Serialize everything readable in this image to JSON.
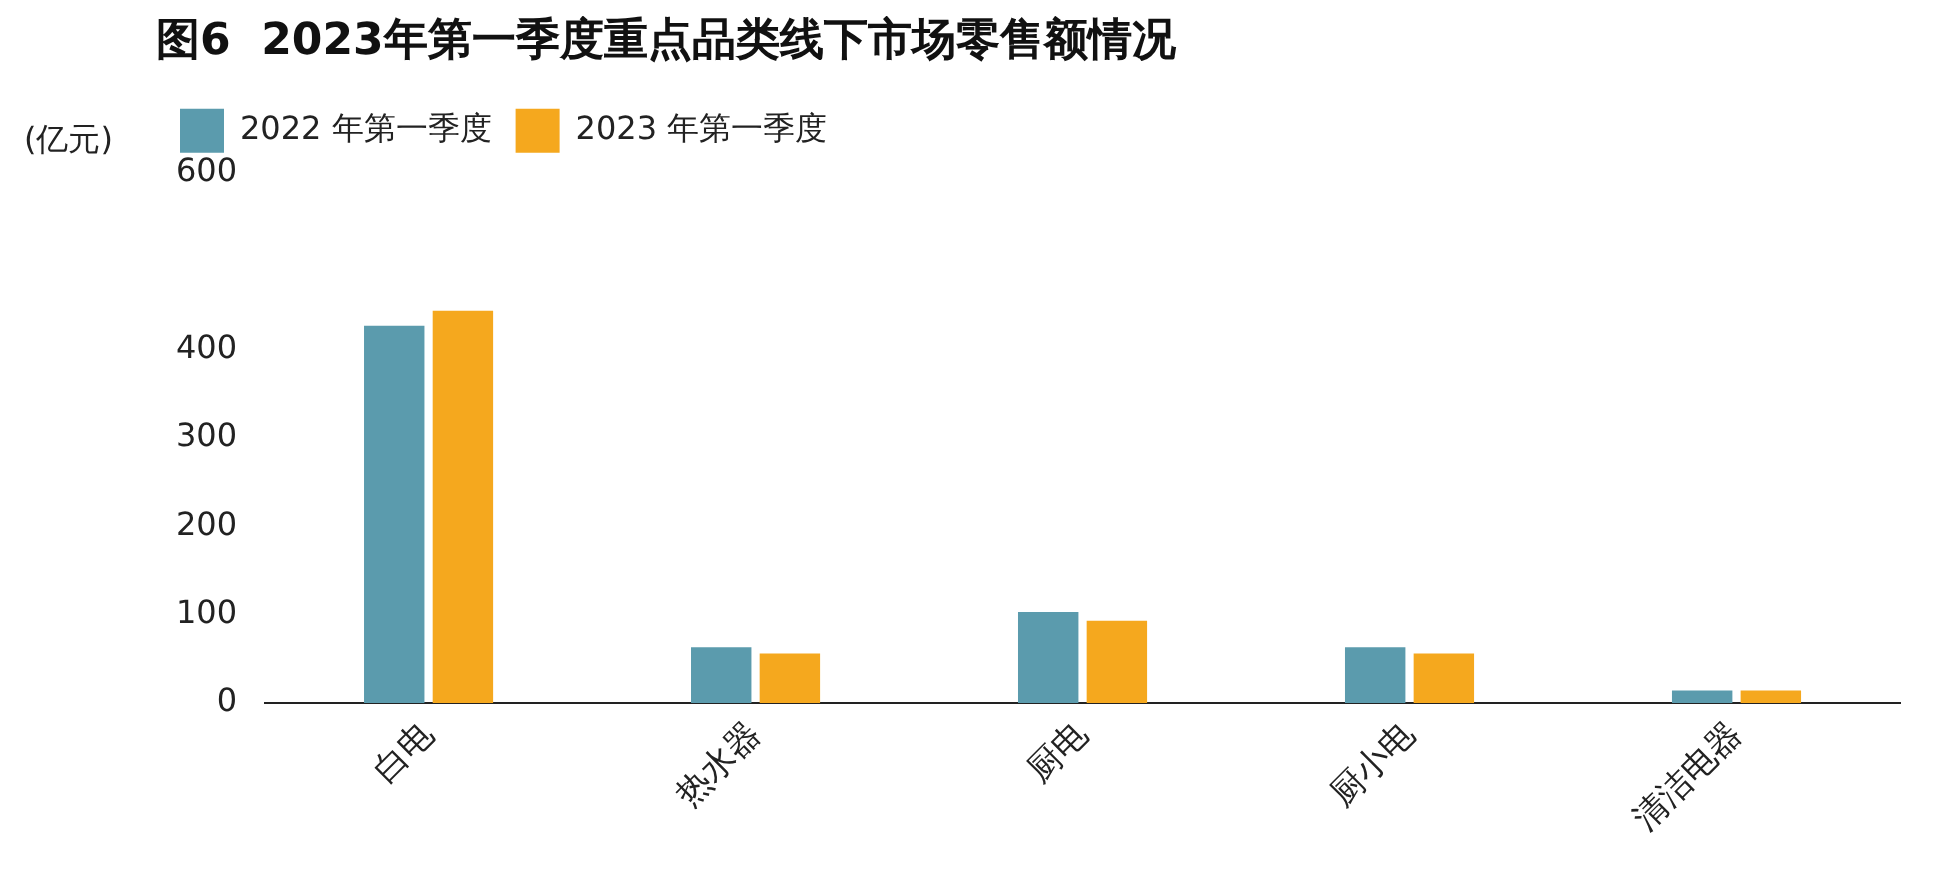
{
  "chart_data": {
    "type": "bar",
    "title": "图6  2023年第一季度重点品类线下市场零售额情况",
    "ylabel": "(亿元)",
    "categories": [
      "白电",
      "热水器",
      "厨电",
      "厨小电",
      "清洁电器"
    ],
    "series": [
      {
        "name": "2022 年第一季度",
        "color": "#5b9bad",
        "values": [
          427,
          63,
          103,
          63,
          14
        ]
      },
      {
        "name": "2023 年第一季度",
        "color": "#f5a81e",
        "values": [
          444,
          56,
          93,
          56,
          14
        ]
      }
    ],
    "ylim": [
      0,
      600
    ],
    "yticks": [
      0,
      100,
      200,
      300,
      400,
      600
    ],
    "grid": false,
    "legend": "top left"
  }
}
